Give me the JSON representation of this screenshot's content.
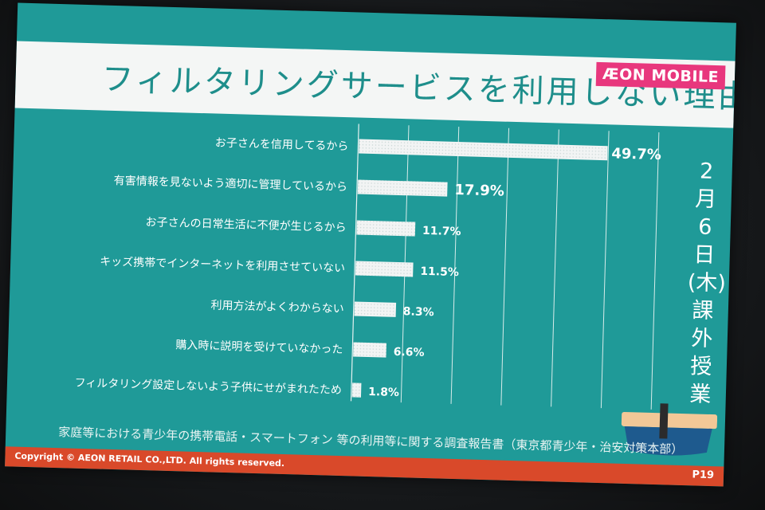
{
  "slide": {
    "title": "フィルタリングサービスを利用しない理由",
    "logo": "ÆON MOBILE",
    "side_text": [
      "2",
      "月",
      "6",
      "日",
      "(木)",
      "課",
      "外",
      "授",
      "業"
    ],
    "source": "家庭等における青少年の携帯電話・スマートフォン 等の利用等に関する調査報告書（東京都青少年・治安対策本部）",
    "copyright": "Copyright © AEON RETAIL CO.,LTD. All rights reserved.",
    "page": "P19"
  },
  "colors": {
    "background": "#1f9a98",
    "title_band": "#f4f6f5",
    "title_text": "#1e8e8b",
    "bar": "#f2f4f4",
    "footer": "#d9492a",
    "logo": "#e8377d"
  },
  "chart_data": {
    "type": "bar",
    "orientation": "horizontal",
    "title": "フィルタリングサービスを利用しない理由",
    "categories": [
      "お子さんを信用してるから",
      "有害情報を見ないよう適切に管理しているから",
      "お子さんの日常生活に不便が生じるから",
      "キッズ携帯でインターネットを利用させていない",
      "利用方法がよくわからない",
      "購入時に説明を受けていなかった",
      "フィルタリング設定しないよう子供にせがまれたため"
    ],
    "values": [
      49.7,
      17.9,
      11.7,
      11.5,
      8.3,
      6.6,
      1.8
    ],
    "value_labels": [
      "49.7%",
      "17.9%",
      "11.7%",
      "11.5%",
      "8.3%",
      "6.6%",
      "1.8%"
    ],
    "unit": "%",
    "xlim": [
      0,
      60
    ],
    "grid": true,
    "legend": "none"
  }
}
